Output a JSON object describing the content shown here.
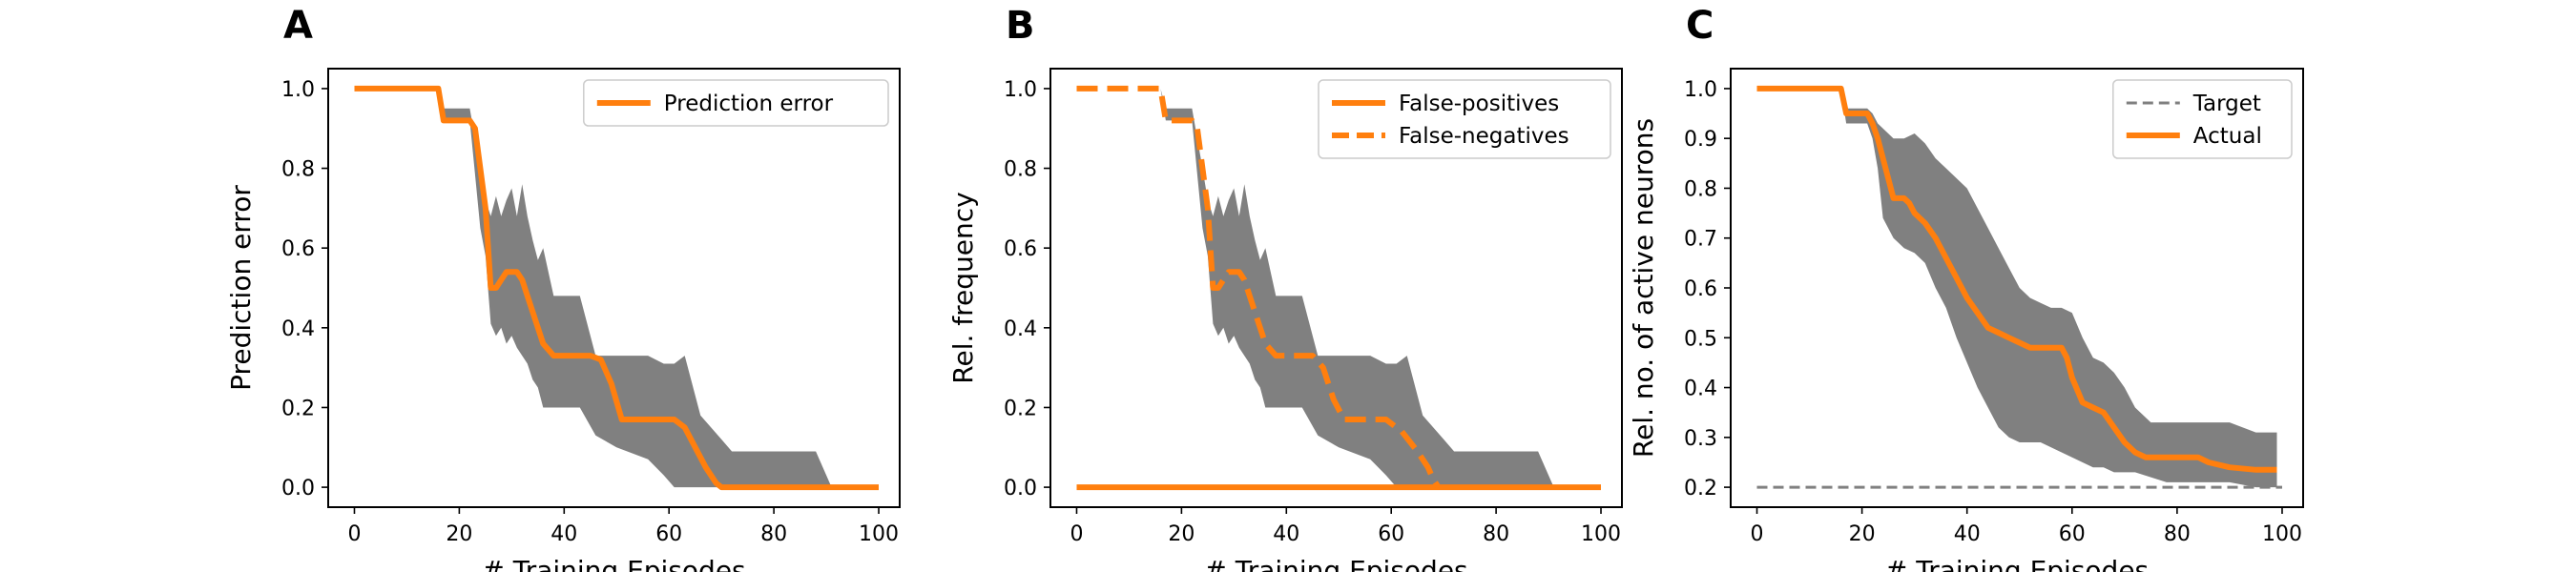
{
  "colors": {
    "series": "#ff7f0e",
    "band": "#808080",
    "target": "#808080",
    "axis": "#000000"
  },
  "chart_data": [
    {
      "panel_label": "A",
      "type": "line",
      "xlabel": "# Training Episodes",
      "ylabel": "Prediction error",
      "xlim": [
        -5,
        104
      ],
      "ylim": [
        -0.05,
        1.05
      ],
      "xticks": [
        0,
        20,
        40,
        60,
        80,
        100
      ],
      "yticks": [
        0.0,
        0.2,
        0.4,
        0.6,
        0.8,
        1.0
      ],
      "ytick_format": 1,
      "grid": false,
      "legend": "top-right",
      "band": {
        "x": [
          0,
          16,
          17,
          22,
          24,
          25,
          26,
          27,
          28,
          29,
          30,
          31,
          32,
          33,
          34,
          35,
          36,
          38,
          40,
          43,
          46,
          50,
          56,
          59,
          61,
          63,
          66,
          70,
          72,
          88,
          91,
          100
        ],
        "upper": [
          1.0,
          1.0,
          0.95,
          0.95,
          0.8,
          0.72,
          0.68,
          0.73,
          0.68,
          0.72,
          0.75,
          0.68,
          0.76,
          0.68,
          0.62,
          0.57,
          0.6,
          0.48,
          0.48,
          0.48,
          0.33,
          0.33,
          0.33,
          0.31,
          0.31,
          0.33,
          0.18,
          0.12,
          0.09,
          0.09,
          0.0,
          0.0
        ],
        "lower": [
          1.0,
          1.0,
          0.92,
          0.92,
          0.65,
          0.58,
          0.41,
          0.38,
          0.4,
          0.36,
          0.38,
          0.35,
          0.33,
          0.31,
          0.27,
          0.25,
          0.2,
          0.2,
          0.2,
          0.2,
          0.13,
          0.1,
          0.07,
          0.03,
          0.0,
          0.0,
          0.0,
          0.0,
          0.0,
          0.0,
          0.0,
          0.0
        ]
      },
      "series": [
        {
          "name": "Prediction error",
          "style": "solid",
          "x": [
            0,
            16,
            17,
            22,
            23,
            25,
            26,
            27,
            28,
            29,
            30,
            31,
            32,
            33,
            35,
            36,
            38,
            45,
            47,
            49,
            51,
            61,
            63,
            65,
            67,
            69,
            70,
            100
          ],
          "y": [
            1.0,
            1.0,
            0.92,
            0.92,
            0.9,
            0.7,
            0.5,
            0.5,
            0.52,
            0.54,
            0.54,
            0.54,
            0.52,
            0.48,
            0.4,
            0.36,
            0.33,
            0.33,
            0.32,
            0.26,
            0.17,
            0.17,
            0.15,
            0.1,
            0.05,
            0.01,
            0.0,
            0.0
          ]
        }
      ]
    },
    {
      "panel_label": "B",
      "type": "line",
      "xlabel": "# Training Episodes",
      "ylabel": "Rel. frequency",
      "xlim": [
        -5,
        104
      ],
      "ylim": [
        -0.05,
        1.05
      ],
      "xticks": [
        0,
        20,
        40,
        60,
        80,
        100
      ],
      "yticks": [
        0.0,
        0.2,
        0.4,
        0.6,
        0.8,
        1.0
      ],
      "ytick_format": 1,
      "grid": false,
      "legend": "top-right",
      "band": {
        "x": [
          0,
          16,
          17,
          22,
          24,
          25,
          26,
          27,
          28,
          29,
          30,
          31,
          32,
          33,
          34,
          35,
          36,
          38,
          40,
          43,
          46,
          50,
          56,
          59,
          61,
          63,
          66,
          70,
          72,
          88,
          91,
          100
        ],
        "upper": [
          1.0,
          1.0,
          0.95,
          0.95,
          0.8,
          0.72,
          0.68,
          0.73,
          0.68,
          0.72,
          0.75,
          0.68,
          0.76,
          0.68,
          0.62,
          0.57,
          0.6,
          0.48,
          0.48,
          0.48,
          0.33,
          0.33,
          0.33,
          0.31,
          0.31,
          0.33,
          0.18,
          0.12,
          0.09,
          0.09,
          0.0,
          0.0
        ],
        "lower": [
          1.0,
          1.0,
          0.92,
          0.92,
          0.65,
          0.58,
          0.41,
          0.38,
          0.4,
          0.36,
          0.38,
          0.35,
          0.33,
          0.31,
          0.27,
          0.25,
          0.2,
          0.2,
          0.2,
          0.2,
          0.13,
          0.1,
          0.07,
          0.03,
          0.0,
          0.0,
          0.0,
          0.0,
          0.0,
          0.0,
          0.0,
          0.0
        ]
      },
      "series": [
        {
          "name": "False-positives",
          "style": "solid",
          "x": [
            0,
            100
          ],
          "y": [
            0.0,
            0.0
          ]
        },
        {
          "name": "False-negatives",
          "style": "dashed",
          "x": [
            0,
            16,
            17,
            22,
            23,
            25,
            26,
            27,
            28,
            29,
            30,
            31,
            32,
            33,
            35,
            36,
            38,
            45,
            47,
            49,
            51,
            56,
            59,
            62,
            65,
            67,
            68,
            69
          ],
          "y": [
            1.0,
            1.0,
            0.92,
            0.92,
            0.9,
            0.7,
            0.5,
            0.5,
            0.52,
            0.54,
            0.54,
            0.54,
            0.52,
            0.48,
            0.4,
            0.36,
            0.33,
            0.33,
            0.3,
            0.22,
            0.17,
            0.17,
            0.17,
            0.14,
            0.09,
            0.05,
            0.02,
            0.0
          ]
        }
      ]
    },
    {
      "panel_label": "C",
      "type": "line",
      "xlabel": "# Training Episodes",
      "ylabel": "Rel. no. of active neurons",
      "xlim": [
        -5,
        104
      ],
      "ylim": [
        0.16,
        1.04
      ],
      "xticks": [
        0,
        20,
        40,
        60,
        80,
        100
      ],
      "yticks": [
        0.2,
        0.3,
        0.4,
        0.5,
        0.6,
        0.7,
        0.8,
        0.9,
        1.0
      ],
      "ytick_format": 1,
      "grid": false,
      "legend": "top-right",
      "band": {
        "x": [
          0,
          16,
          17,
          21,
          22,
          23,
          24,
          26,
          28,
          30,
          32,
          34,
          36,
          38,
          40,
          42,
          44,
          46,
          48,
          50,
          52,
          54,
          56,
          58,
          60,
          62,
          64,
          66,
          68,
          70,
          72,
          75,
          78,
          80,
          85,
          90,
          95,
          99
        ],
        "upper": [
          1.0,
          1.0,
          0.96,
          0.96,
          0.95,
          0.93,
          0.92,
          0.9,
          0.9,
          0.91,
          0.89,
          0.86,
          0.84,
          0.82,
          0.8,
          0.76,
          0.72,
          0.68,
          0.64,
          0.6,
          0.58,
          0.57,
          0.56,
          0.56,
          0.55,
          0.5,
          0.46,
          0.45,
          0.43,
          0.4,
          0.36,
          0.33,
          0.33,
          0.33,
          0.33,
          0.33,
          0.31,
          0.31
        ],
        "lower": [
          1.0,
          1.0,
          0.93,
          0.93,
          0.9,
          0.84,
          0.74,
          0.7,
          0.68,
          0.67,
          0.65,
          0.6,
          0.56,
          0.5,
          0.45,
          0.4,
          0.36,
          0.32,
          0.3,
          0.29,
          0.29,
          0.29,
          0.28,
          0.27,
          0.26,
          0.25,
          0.24,
          0.24,
          0.23,
          0.23,
          0.23,
          0.22,
          0.21,
          0.21,
          0.21,
          0.21,
          0.2,
          0.2
        ]
      },
      "series": [
        {
          "name": "Target",
          "style": "target-dashed",
          "x": [
            0,
            100
          ],
          "y": [
            0.2,
            0.2
          ]
        },
        {
          "name": "Actual",
          "style": "solid",
          "x": [
            0,
            16,
            17,
            21,
            22,
            23,
            24,
            25,
            26,
            28,
            29,
            30,
            32,
            34,
            36,
            38,
            40,
            42,
            44,
            46,
            48,
            50,
            52,
            54,
            56,
            58,
            59,
            60,
            62,
            64,
            66,
            68,
            70,
            72,
            74,
            76,
            80,
            84,
            86,
            90,
            95,
            99
          ],
          "y": [
            1.0,
            1.0,
            0.95,
            0.95,
            0.93,
            0.9,
            0.86,
            0.82,
            0.78,
            0.78,
            0.77,
            0.75,
            0.73,
            0.7,
            0.66,
            0.62,
            0.58,
            0.55,
            0.52,
            0.51,
            0.5,
            0.49,
            0.48,
            0.48,
            0.48,
            0.48,
            0.46,
            0.42,
            0.37,
            0.36,
            0.35,
            0.32,
            0.29,
            0.27,
            0.26,
            0.26,
            0.26,
            0.26,
            0.25,
            0.24,
            0.235,
            0.235
          ]
        }
      ]
    }
  ]
}
